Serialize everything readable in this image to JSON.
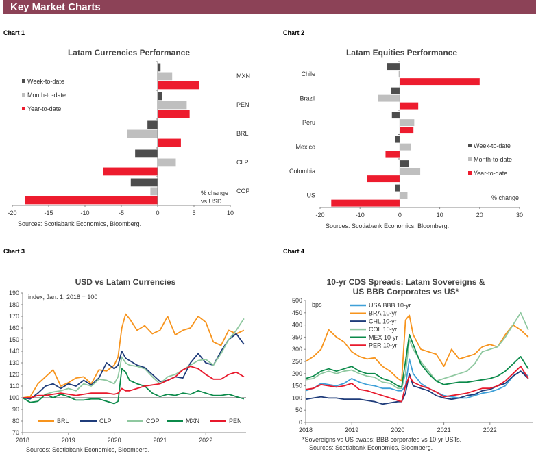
{
  "header": {
    "title": "Key Market Charts"
  },
  "chart_labels": [
    "Chart 1",
    "Chart 2",
    "Chart 3",
    "Chart 4"
  ],
  "colors": {
    "header": "#8c4257",
    "week": "#4d4d4d",
    "month": "#bfbfbf",
    "year": "#ed1c2e"
  },
  "chart_data": [
    {
      "type": "bar",
      "orientation": "horizontal",
      "title": "Latam Currencies Performance",
      "categories": [
        "MXN",
        "PEN",
        "BRL",
        "CLP",
        "COP"
      ],
      "series": [
        {
          "name": "Week-to-date",
          "color": "#4d4d4d",
          "values": [
            0.4,
            0.6,
            -1.4,
            -3.1,
            -3.7
          ]
        },
        {
          "name": "Month-to-date",
          "color": "#bfbfbf",
          "values": [
            2.0,
            4.0,
            -4.2,
            2.5,
            -1.0
          ]
        },
        {
          "name": "Year-to-date",
          "color": "#ed1c2e",
          "values": [
            5.7,
            4.4,
            3.2,
            -7.5,
            -18.3
          ]
        }
      ],
      "xlim": [
        -20,
        10
      ],
      "xticks": [
        "-20",
        "-15",
        "-10",
        "-5",
        "0",
        "5",
        "10"
      ],
      "unit_note": [
        "% change",
        "vs USD"
      ],
      "legend": "left",
      "source": "Sources: Scotiabank Economics, Bloomberg."
    },
    {
      "type": "bar",
      "orientation": "horizontal",
      "title": "Latam Equities Performance",
      "categories": [
        "Chile",
        "Brazil",
        "Peru",
        "Mexico",
        "Colombia",
        "US"
      ],
      "series": [
        {
          "name": "Week-to-date",
          "color": "#4d4d4d",
          "values": [
            -3.3,
            -2.3,
            -2.0,
            -1.1,
            2.2,
            -1.1
          ]
        },
        {
          "name": "Month-to-date",
          "color": "#bfbfbf",
          "values": [
            -0.3,
            -5.4,
            3.6,
            2.8,
            5.1,
            1.9
          ]
        },
        {
          "name": "Year-to-date",
          "color": "#ed1c2e",
          "values": [
            20.0,
            4.6,
            3.4,
            -3.6,
            -8.2,
            -17.2
          ]
        }
      ],
      "xlim": [
        -20,
        30
      ],
      "xticks": [
        "-20",
        "-10",
        "0",
        "10",
        "20",
        "30"
      ],
      "unit_note": [
        "% change"
      ],
      "legend": "right",
      "source": "Sources: Scotiabank Economics, Bloomberg."
    },
    {
      "type": "line",
      "title": "USD vs Latam Currencies",
      "note": "index, Jan. 1, 2018 = 100",
      "ylim": [
        70,
        190
      ],
      "yticks": [
        "70",
        "80",
        "90",
        "100",
        "110",
        "120",
        "130",
        "140",
        "150",
        "160",
        "170",
        "180",
        "190"
      ],
      "xticks": [
        "2018",
        "2019",
        "2020",
        "2021",
        "2022"
      ],
      "x": [
        "2018-01",
        "2018-03",
        "2018-05",
        "2018-07",
        "2018-09",
        "2018-11",
        "2019-01",
        "2019-03",
        "2019-05",
        "2019-07",
        "2019-09",
        "2019-11",
        "2020-01",
        "2020-02",
        "2020-03",
        "2020-04",
        "2020-05",
        "2020-07",
        "2020-09",
        "2020-11",
        "2021-01",
        "2021-03",
        "2021-05",
        "2021-07",
        "2021-09",
        "2021-11",
        "2022-01",
        "2022-03",
        "2022-05",
        "2022-07",
        "2022-09",
        "2022-11"
      ],
      "reference_line": 100,
      "legend": "bottom",
      "series": [
        {
          "name": "BRL",
          "color": "#f7941d",
          "values": [
            100,
            101,
            112,
            118,
            124,
            110,
            113,
            117,
            118,
            112,
            124,
            123,
            128,
            135,
            160,
            172,
            168,
            158,
            162,
            155,
            158,
            170,
            154,
            158,
            160,
            170,
            165,
            148,
            145,
            158,
            155,
            158
          ]
        },
        {
          "name": "CLP",
          "color": "#1f3c7a",
          "values": [
            100,
            99,
            104,
            110,
            112,
            108,
            112,
            110,
            115,
            111,
            117,
            130,
            125,
            128,
            140,
            134,
            132,
            128,
            126,
            120,
            114,
            115,
            118,
            117,
            130,
            138,
            130,
            128,
            140,
            150,
            155,
            146
          ]
        },
        {
          "name": "COP",
          "color": "#8fc8a0",
          "values": [
            100,
            96,
            97,
            103,
            105,
            106,
            108,
            106,
            112,
            110,
            116,
            115,
            112,
            118,
            135,
            130,
            128,
            127,
            125,
            118,
            112,
            118,
            120,
            124,
            128,
            132,
            133,
            128,
            138,
            150,
            158,
            168
          ]
        },
        {
          "name": "MXN",
          "color": "#0b8a4a",
          "values": [
            100,
            96,
            97,
            103,
            100,
            103,
            101,
            98,
            98,
            99,
            99,
            97,
            95,
            97,
            125,
            122,
            115,
            112,
            110,
            104,
            101,
            103,
            102,
            104,
            103,
            106,
            104,
            102,
            102,
            103,
            101,
            99
          ]
        },
        {
          "name": "PEN",
          "color": "#e8192c",
          "values": [
            100,
            100,
            102,
            102,
            103,
            104,
            103,
            102,
            103,
            104,
            104,
            104,
            103,
            104,
            108,
            106,
            106,
            108,
            110,
            111,
            112,
            115,
            118,
            124,
            127,
            125,
            120,
            116,
            116,
            120,
            122,
            118
          ]
        }
      ],
      "source": "Sources: Scotiabank Economics, Bloomberg."
    },
    {
      "type": "line",
      "title": [
        "10-yr CDS Spreads: Latam Sovereigns &",
        "US BBB Corporates vs US*"
      ],
      "ylabel": "bps",
      "ylim": [
        0,
        500
      ],
      "yticks": [
        "0",
        "50",
        "100",
        "150",
        "200",
        "250",
        "300",
        "350",
        "400",
        "450",
        "500"
      ],
      "xticks": [
        "2018",
        "2019",
        "2020",
        "2021",
        "2022"
      ],
      "x": [
        "2018-01",
        "2018-03",
        "2018-05",
        "2018-07",
        "2018-09",
        "2018-11",
        "2019-01",
        "2019-03",
        "2019-05",
        "2019-07",
        "2019-09",
        "2019-11",
        "2020-01",
        "2020-02",
        "2020-03",
        "2020-04",
        "2020-05",
        "2020-07",
        "2020-09",
        "2020-11",
        "2021-01",
        "2021-03",
        "2021-05",
        "2021-07",
        "2021-09",
        "2021-11",
        "2022-01",
        "2022-03",
        "2022-05",
        "2022-07",
        "2022-09",
        "2022-11"
      ],
      "legend": "top-left",
      "series": [
        {
          "name": "USA BBB 10-yr",
          "color": "#3ea0d8",
          "values": [
            130,
            140,
            160,
            155,
            150,
            160,
            180,
            165,
            155,
            150,
            140,
            140,
            130,
            130,
            150,
            260,
            200,
            160,
            140,
            125,
            110,
            105,
            100,
            100,
            110,
            120,
            125,
            135,
            150,
            190,
            210,
            190
          ]
        },
        {
          "name": "BRA 10-yr",
          "color": "#f7941d",
          "values": [
            250,
            270,
            300,
            380,
            350,
            330,
            290,
            270,
            260,
            265,
            230,
            210,
            180,
            170,
            420,
            440,
            360,
            300,
            290,
            280,
            230,
            300,
            260,
            270,
            280,
            310,
            320,
            310,
            360,
            400,
            380,
            350
          ]
        },
        {
          "name": "CHL 10-yr",
          "color": "#1f3c7a",
          "values": [
            95,
            100,
            105,
            100,
            100,
            95,
            95,
            95,
            90,
            85,
            75,
            80,
            85,
            85,
            120,
            200,
            150,
            140,
            130,
            110,
            100,
            95,
            100,
            110,
            115,
            130,
            135,
            150,
            160,
            190,
            210,
            180
          ]
        },
        {
          "name": "COL 10-yr",
          "color": "#8fc8a0",
          "values": [
            175,
            180,
            200,
            210,
            200,
            210,
            215,
            200,
            190,
            185,
            165,
            160,
            140,
            140,
            200,
            340,
            300,
            250,
            210,
            170,
            180,
            190,
            200,
            210,
            240,
            290,
            300,
            310,
            350,
            400,
            450,
            380
          ]
        },
        {
          "name": "MEX 10-yr",
          "color": "#0b8a4a",
          "values": [
            180,
            190,
            210,
            220,
            210,
            220,
            230,
            210,
            200,
            200,
            180,
            170,
            150,
            145,
            250,
            360,
            320,
            240,
            200,
            170,
            155,
            160,
            165,
            165,
            170,
            175,
            180,
            190,
            210,
            240,
            270,
            220
          ]
        },
        {
          "name": "PER 10-yr",
          "color": "#e8192c",
          "values": [
            135,
            140,
            155,
            150,
            145,
            150,
            160,
            135,
            130,
            120,
            110,
            100,
            90,
            85,
            150,
            190,
            165,
            150,
            140,
            125,
            105,
            110,
            115,
            120,
            130,
            140,
            140,
            150,
            170,
            200,
            230,
            180
          ]
        }
      ],
      "footnote": "*Sovereigns vs US swaps; BBB corporates vs 10-yr USTs.",
      "source": "Sources: Scotiabank Economics, Bloomberg."
    }
  ]
}
